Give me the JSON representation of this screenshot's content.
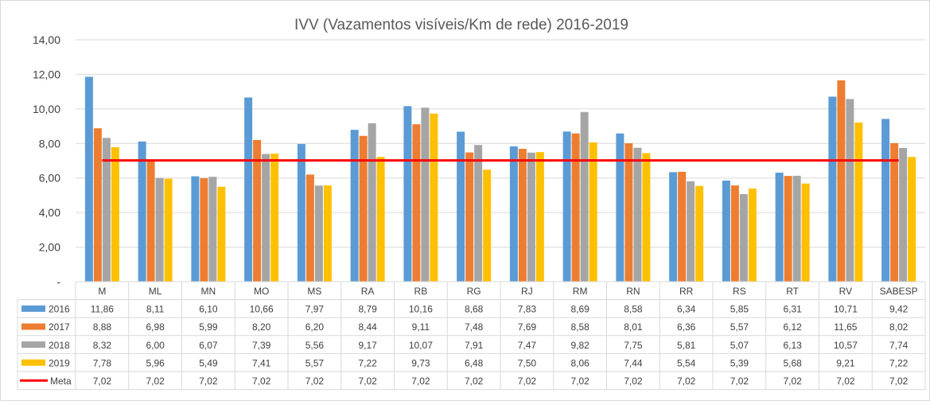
{
  "chart_data": {
    "type": "bar",
    "title": "IVV (Vazamentos visíveis/Km de rede) 2016-2019",
    "categories": [
      "M",
      "ML",
      "MN",
      "MO",
      "MS",
      "RA",
      "RB",
      "RG",
      "RJ",
      "RM",
      "RN",
      "RR",
      "RS",
      "RT",
      "RV",
      "SABESP"
    ],
    "ylim": [
      0,
      14
    ],
    "yticks": [
      "-",
      "2,00",
      "4,00",
      "6,00",
      "8,00",
      "10,00",
      "12,00",
      "14,00"
    ],
    "grid": true,
    "legend": "data-table",
    "series": [
      {
        "name": "2016",
        "color": "#5B9BD5",
        "values": [
          11.86,
          8.11,
          6.1,
          10.66,
          7.97,
          8.79,
          10.16,
          8.68,
          7.83,
          8.69,
          8.58,
          6.34,
          5.85,
          6.31,
          10.71,
          9.42
        ],
        "labels": [
          "11,86",
          "8,11",
          "6,10",
          "10,66",
          "7,97",
          "8,79",
          "10,16",
          "8,68",
          "7,83",
          "8,69",
          "8,58",
          "6,34",
          "5,85",
          "6,31",
          "10,71",
          "9,42"
        ]
      },
      {
        "name": "2017",
        "color": "#ED7D31",
        "values": [
          8.88,
          6.98,
          5.99,
          8.2,
          6.2,
          8.44,
          9.11,
          7.48,
          7.69,
          8.58,
          8.01,
          6.36,
          5.57,
          6.12,
          11.65,
          8.02
        ],
        "labels": [
          "8,88",
          "6,98",
          "5,99",
          "8,20",
          "6,20",
          "8,44",
          "9,11",
          "7,48",
          "7,69",
          "8,58",
          "8,01",
          "6,36",
          "5,57",
          "6,12",
          "11,65",
          "8,02"
        ]
      },
      {
        "name": "2018",
        "color": "#A5A5A5",
        "values": [
          8.32,
          6.0,
          6.07,
          7.39,
          5.56,
          9.17,
          10.07,
          7.91,
          7.47,
          9.82,
          7.75,
          5.81,
          5.07,
          6.13,
          10.57,
          7.74
        ],
        "labels": [
          "8,32",
          "6,00",
          "6,07",
          "7,39",
          "5,56",
          "9,17",
          "10,07",
          "7,91",
          "7,47",
          "9,82",
          "7,75",
          "5,81",
          "5,07",
          "6,13",
          "10,57",
          "7,74"
        ]
      },
      {
        "name": "2019",
        "color": "#FFC000",
        "values": [
          7.78,
          5.96,
          5.49,
          7.41,
          5.57,
          7.22,
          9.73,
          6.48,
          7.5,
          8.06,
          7.44,
          5.54,
          5.39,
          5.68,
          9.21,
          7.22
        ],
        "labels": [
          "7,78",
          "5,96",
          "5,49",
          "7,41",
          "5,57",
          "7,22",
          "9,73",
          "6,48",
          "7,50",
          "8,06",
          "7,44",
          "5,54",
          "5,39",
          "5,68",
          "9,21",
          "7,22"
        ]
      }
    ],
    "line_series": {
      "name": "Meta",
      "color": "#FF0000",
      "value": 7.02,
      "labels": [
        "7,02",
        "7,02",
        "7,02",
        "7,02",
        "7,02",
        "7,02",
        "7,02",
        "7,02",
        "7,02",
        "7,02",
        "7,02",
        "7,02",
        "7,02",
        "7,02",
        "7,02",
        "7,02"
      ]
    }
  }
}
